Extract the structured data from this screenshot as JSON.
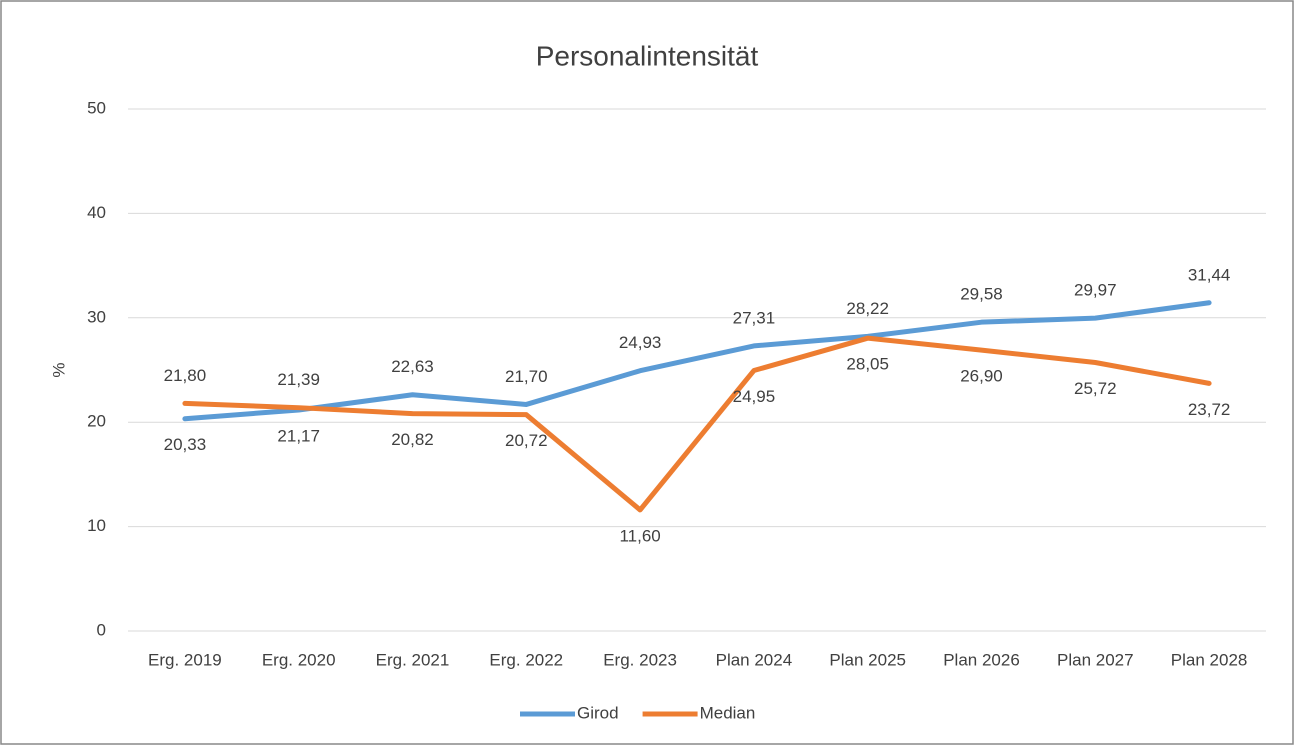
{
  "chart_data": {
    "type": "line",
    "title": "Personalintensität",
    "y_label": "%",
    "categories": [
      "Erg. 2019",
      "Erg. 2020",
      "Erg. 2021",
      "Erg. 2022",
      "Erg. 2023",
      "Plan 2024",
      "Plan 2025",
      "Plan 2026",
      "Plan 2027",
      "Plan 2028"
    ],
    "series": [
      {
        "name": "Girod",
        "color": "#5b9bd5",
        "values": [
          20.33,
          21.17,
          22.63,
          21.7,
          24.93,
          27.31,
          28.22,
          29.58,
          29.97,
          31.44
        ],
        "value_labels": [
          "20,33",
          "21,17",
          "22,63",
          "21,70",
          "24,93",
          "27,31",
          "28,22",
          "29,58",
          "29,97",
          "31,44"
        ]
      },
      {
        "name": "Median",
        "color": "#ed7d31",
        "values": [
          21.8,
          21.39,
          20.82,
          20.72,
          11.6,
          24.95,
          28.05,
          26.9,
          25.72,
          23.72
        ],
        "value_labels": [
          "21,80",
          "21,39",
          "20,82",
          "20,72",
          "11,60",
          "24,95",
          "28,05",
          "26,90",
          "25,72",
          "23,72"
        ]
      }
    ],
    "ylim": [
      0,
      50
    ],
    "yticks": [
      0,
      10,
      20,
      30,
      40,
      50
    ],
    "grid": true,
    "legend": "bottom"
  }
}
